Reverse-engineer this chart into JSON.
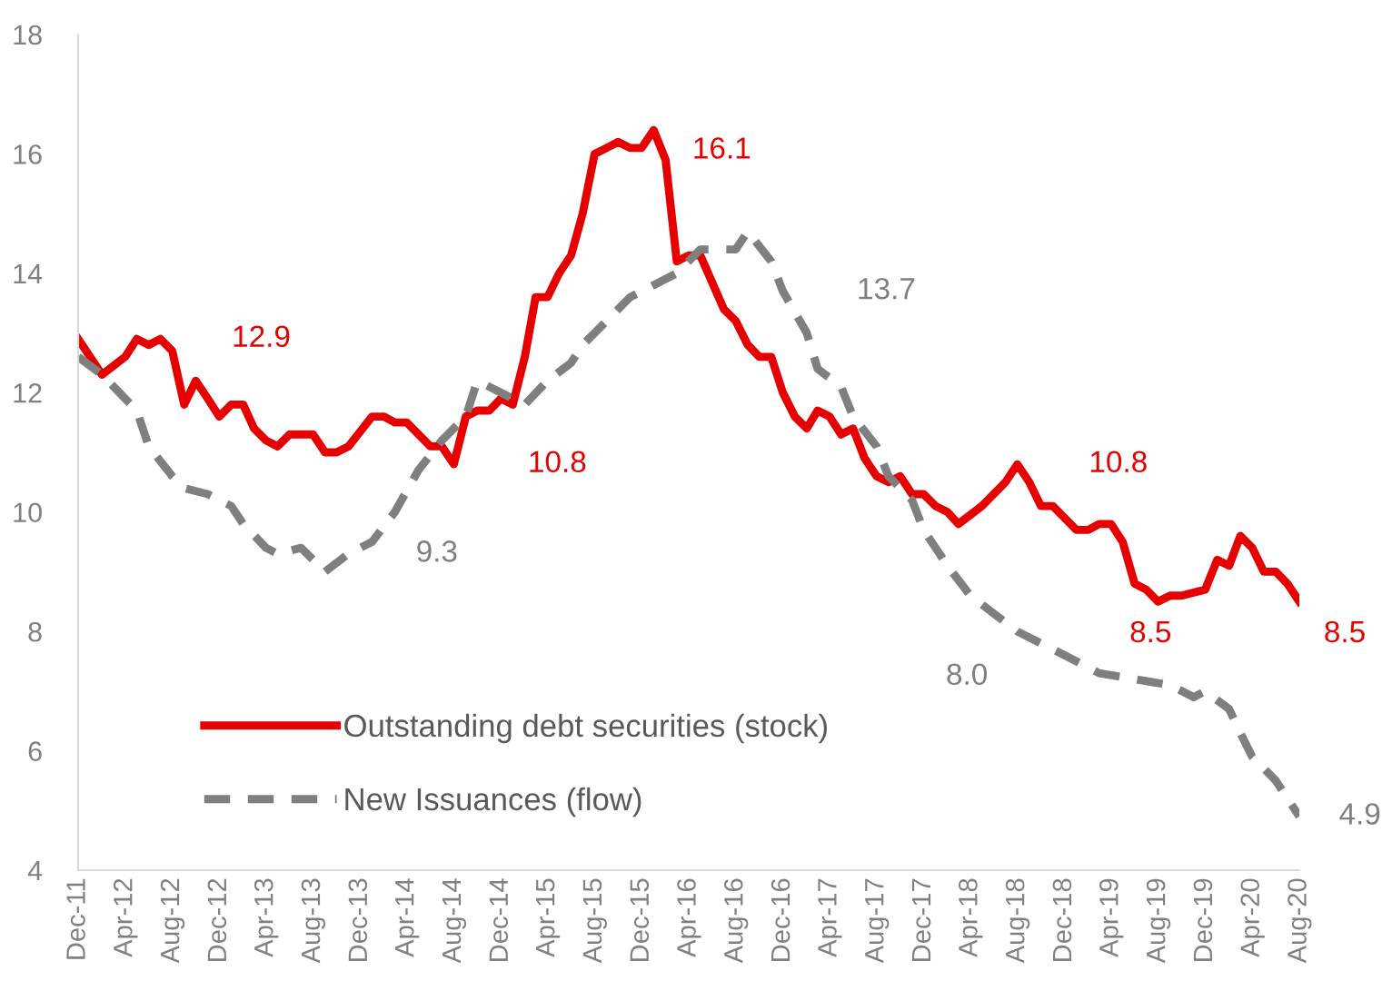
{
  "chart_data": {
    "type": "line",
    "xlim": [
      "2011-12",
      "2020-08"
    ],
    "xticks": [
      {
        "value": "2011-12",
        "label": "Dec-11"
      },
      {
        "value": "2012-04",
        "label": "Apr-12"
      },
      {
        "value": "2012-08",
        "label": "Aug-12"
      },
      {
        "value": "2012-12",
        "label": "Dec-12"
      },
      {
        "value": "2013-04",
        "label": "Apr-13"
      },
      {
        "value": "2013-08",
        "label": "Aug-13"
      },
      {
        "value": "2013-12",
        "label": "Dec-13"
      },
      {
        "value": "2014-04",
        "label": "Apr-14"
      },
      {
        "value": "2014-08",
        "label": "Aug-14"
      },
      {
        "value": "2014-12",
        "label": "Dec-14"
      },
      {
        "value": "2015-04",
        "label": "Apr-15"
      },
      {
        "value": "2015-08",
        "label": "Aug-15"
      },
      {
        "value": "2015-12",
        "label": "Dec-15"
      },
      {
        "value": "2016-04",
        "label": "Apr-16"
      },
      {
        "value": "2016-08",
        "label": "Aug-16"
      },
      {
        "value": "2016-12",
        "label": "Dec-16"
      },
      {
        "value": "2017-04",
        "label": "Apr-17"
      },
      {
        "value": "2017-08",
        "label": "Aug-17"
      },
      {
        "value": "2017-12",
        "label": "Dec-17"
      },
      {
        "value": "2018-04",
        "label": "Apr-18"
      },
      {
        "value": "2018-08",
        "label": "Aug-18"
      },
      {
        "value": "2018-12",
        "label": "Dec-18"
      },
      {
        "value": "2019-04",
        "label": "Apr-19"
      },
      {
        "value": "2019-08",
        "label": "Aug-19"
      },
      {
        "value": "2019-12",
        "label": "Dec-19"
      },
      {
        "value": "2020-04",
        "label": "Apr-20"
      },
      {
        "value": "2020-08",
        "label": "Aug-20"
      }
    ],
    "ylim": [
      4,
      18
    ],
    "yticks": [
      4,
      6,
      8,
      10,
      12,
      14,
      16,
      18
    ],
    "grid": false,
    "legend": "bottom left",
    "marker": "none",
    "series": [
      {
        "name": "Outstanding debt securities (stock)",
        "color": "#e60000",
        "line_style": "solid",
        "x": [
          "2011-12",
          "2012-02",
          "2012-04",
          "2012-05",
          "2012-06",
          "2012-07",
          "2012-08",
          "2012-09",
          "2012-10",
          "2012-11",
          "2012-12",
          "2013-01",
          "2013-02",
          "2013-03",
          "2013-04",
          "2013-05",
          "2013-06",
          "2013-08",
          "2013-09",
          "2013-10",
          "2013-11",
          "2014-01",
          "2014-02",
          "2014-03",
          "2014-04",
          "2014-06",
          "2014-07",
          "2014-08",
          "2014-09",
          "2014-10",
          "2014-11",
          "2014-12",
          "2015-01",
          "2015-02",
          "2015-03",
          "2015-04",
          "2015-05",
          "2015-06",
          "2015-07",
          "2015-08",
          "2015-09",
          "2015-10",
          "2015-11",
          "2015-12",
          "2016-01",
          "2016-02",
          "2016-03",
          "2016-04",
          "2016-05",
          "2016-07",
          "2016-08",
          "2016-09",
          "2016-10",
          "2016-11",
          "2016-12",
          "2017-01",
          "2017-02",
          "2017-03",
          "2017-04",
          "2017-05",
          "2017-06",
          "2017-07",
          "2017-08",
          "2017-09",
          "2017-10",
          "2017-11",
          "2017-12",
          "2018-01",
          "2018-02",
          "2018-03",
          "2018-05",
          "2018-07",
          "2018-08",
          "2018-09",
          "2018-10",
          "2018-11",
          "2019-01",
          "2019-02",
          "2019-03",
          "2019-04",
          "2019-05",
          "2019-06",
          "2019-07",
          "2019-08",
          "2019-09",
          "2019-10",
          "2019-12",
          "2020-01",
          "2020-02",
          "2020-03",
          "2020-04",
          "2020-05",
          "2020-06",
          "2020-07",
          "2020-08"
        ],
        "values": [
          12.9,
          12.3,
          12.6,
          12.9,
          12.8,
          12.9,
          12.7,
          11.8,
          12.2,
          11.9,
          11.6,
          11.8,
          11.8,
          11.4,
          11.2,
          11.1,
          11.3,
          11.3,
          11.0,
          11.0,
          11.1,
          11.6,
          11.6,
          11.5,
          11.5,
          11.1,
          11.1,
          10.8,
          11.6,
          11.7,
          11.7,
          11.9,
          11.8,
          12.6,
          13.6,
          13.6,
          14.0,
          14.3,
          15.0,
          16.0,
          16.1,
          16.2,
          16.1,
          16.1,
          16.4,
          15.9,
          14.2,
          14.3,
          14.3,
          13.4,
          13.2,
          12.8,
          12.6,
          12.6,
          12.0,
          11.6,
          11.4,
          11.7,
          11.6,
          11.3,
          11.4,
          10.9,
          10.6,
          10.5,
          10.6,
          10.3,
          10.3,
          10.1,
          10.0,
          9.8,
          10.1,
          10.5,
          10.8,
          10.5,
          10.1,
          10.1,
          9.7,
          9.7,
          9.8,
          9.8,
          9.5,
          8.8,
          8.7,
          8.5,
          8.6,
          8.6,
          8.7,
          9.2,
          9.1,
          9.6,
          9.4,
          9.0,
          9.0,
          8.8,
          8.5
        ]
      },
      {
        "name": "New Issuances (flow)",
        "color": "#7f7f7f",
        "line_style": "dashed",
        "x": [
          "2011-12",
          "2012-02",
          "2012-05",
          "2012-06",
          "2012-08",
          "2012-09",
          "2012-11",
          "2013-01",
          "2013-02",
          "2013-04",
          "2013-05",
          "2013-07",
          "2013-09",
          "2013-11",
          "2014-01",
          "2014-03",
          "2014-05",
          "2014-07",
          "2014-09",
          "2014-10",
          "2014-12",
          "2015-02",
          "2015-04",
          "2015-06",
          "2015-07",
          "2015-09",
          "2015-11",
          "2016-01",
          "2016-03",
          "2016-05",
          "2016-08",
          "2016-09",
          "2016-11",
          "2016-12",
          "2017-02",
          "2017-03",
          "2017-05",
          "2017-06",
          "2017-08",
          "2017-09",
          "2017-11",
          "2017-12",
          "2018-02",
          "2018-04",
          "2018-06",
          "2018-08",
          "2018-10",
          "2019-01",
          "2019-03",
          "2019-06",
          "2019-09",
          "2019-11",
          "2019-12",
          "2020-02",
          "2020-03",
          "2020-04",
          "2020-06",
          "2020-08"
        ],
        "values": [
          12.6,
          12.3,
          11.7,
          11.1,
          10.6,
          10.4,
          10.3,
          10.1,
          9.8,
          9.4,
          9.3,
          9.4,
          9.0,
          9.3,
          9.5,
          10.0,
          10.7,
          11.2,
          11.6,
          12.2,
          12.0,
          11.8,
          12.2,
          12.5,
          12.8,
          13.2,
          13.6,
          13.8,
          14.0,
          14.4,
          14.4,
          14.7,
          14.2,
          13.7,
          13.0,
          12.4,
          12.1,
          11.6,
          11.1,
          10.6,
          10.2,
          9.7,
          9.1,
          8.6,
          8.3,
          8.0,
          7.8,
          7.5,
          7.3,
          7.2,
          7.1,
          6.9,
          7.0,
          6.7,
          6.3,
          5.9,
          5.5,
          4.9
        ]
      }
    ],
    "annotations": [
      {
        "text": "12.9",
        "x": "2012-07",
        "y": 12.9
      },
      {
        "text": "9.3",
        "x": "2013-11",
        "y": 9.3
      },
      {
        "text": "10.8",
        "x": "2014-08",
        "y": 10.8
      },
      "16.1",
      {
        "text": "13.7",
        "x": "2016-12",
        "y": 13.7
      },
      {
        "text": "10.8",
        "x": "2018-08",
        "y": 10.8
      },
      {
        "text": "8.0",
        "x": "2018-08",
        "y": 8.0
      },
      {
        "text": "8.5",
        "x": "2019-08",
        "y": 8.5
      },
      {
        "text": "8.5",
        "x": "2020-08",
        "y": 8.5
      },
      {
        "text": "4.9",
        "x": "2020-08",
        "y": 4.9
      }
    ]
  }
}
